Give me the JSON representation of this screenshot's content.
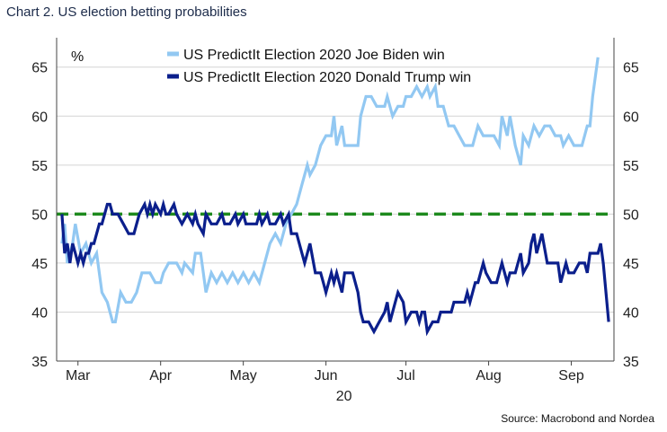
{
  "title": "Chart 2. US election betting probabilities",
  "source": "Source: Macrobond and Nordea",
  "colors": {
    "biden": "#92c8f2",
    "trump": "#0b1f8c",
    "reference": "#1e8a1e",
    "grid": "#d4d4d4",
    "axis": "#444444"
  },
  "chart_data": {
    "type": "line",
    "title": "Chart 2. US election betting probabilities",
    "unit_label": "%",
    "ylim": [
      35,
      68
    ],
    "yticks": [
      35,
      40,
      45,
      50,
      55,
      60,
      65
    ],
    "xlim": [
      "2020-02-28",
      "2020-09-24"
    ],
    "x_ticks": [
      {
        "label": "Mar",
        "date": "2020-03-07"
      },
      {
        "label": "Apr",
        "date": "2020-04-07"
      },
      {
        "label": "May",
        "date": "2020-05-08"
      },
      {
        "label": "Jun",
        "date": "2020-06-08"
      },
      {
        "label": "Jul",
        "date": "2020-07-08"
      },
      {
        "label": "Aug",
        "date": "2020-08-08"
      },
      {
        "label": "Sep",
        "date": "2020-09-08"
      }
    ],
    "x_sublabel": "20",
    "grid": "horizontal",
    "legend_position": "top",
    "reference_line": {
      "y": 50,
      "style": "dashed"
    },
    "series": [
      {
        "name": "US PredictIt Election 2020 Joe Biden win",
        "color": "#92c8f2",
        "points": [
          [
            "2020-03-01",
            47
          ],
          [
            "2020-03-02",
            49
          ],
          [
            "2020-03-03",
            45
          ],
          [
            "2020-03-05",
            47
          ],
          [
            "2020-03-06",
            49
          ],
          [
            "2020-03-08",
            46
          ],
          [
            "2020-03-10",
            47
          ],
          [
            "2020-03-12",
            45
          ],
          [
            "2020-03-14",
            46
          ],
          [
            "2020-03-16",
            42
          ],
          [
            "2020-03-18",
            41
          ],
          [
            "2020-03-20",
            39
          ],
          [
            "2020-03-21",
            39
          ],
          [
            "2020-03-23",
            42
          ],
          [
            "2020-03-25",
            41
          ],
          [
            "2020-03-27",
            41
          ],
          [
            "2020-03-29",
            42
          ],
          [
            "2020-03-31",
            44
          ],
          [
            "2020-04-03",
            44
          ],
          [
            "2020-04-05",
            43
          ],
          [
            "2020-04-07",
            43
          ],
          [
            "2020-04-08",
            44
          ],
          [
            "2020-04-10",
            45
          ],
          [
            "2020-04-13",
            45
          ],
          [
            "2020-04-15",
            44
          ],
          [
            "2020-04-16",
            45
          ],
          [
            "2020-04-19",
            44
          ],
          [
            "2020-04-20",
            46
          ],
          [
            "2020-04-22",
            46
          ],
          [
            "2020-04-23",
            44
          ],
          [
            "2020-04-24",
            42
          ],
          [
            "2020-04-26",
            44
          ],
          [
            "2020-04-28",
            43
          ],
          [
            "2020-04-30",
            44
          ],
          [
            "2020-05-02",
            43
          ],
          [
            "2020-05-04",
            44
          ],
          [
            "2020-05-06",
            43
          ],
          [
            "2020-05-08",
            44
          ],
          [
            "2020-05-10",
            43
          ],
          [
            "2020-05-12",
            44
          ],
          [
            "2020-05-14",
            43
          ],
          [
            "2020-05-16",
            45
          ],
          [
            "2020-05-18",
            47
          ],
          [
            "2020-05-20",
            48
          ],
          [
            "2020-05-22",
            47
          ],
          [
            "2020-05-24",
            49
          ],
          [
            "2020-05-26",
            50
          ],
          [
            "2020-05-28",
            51
          ],
          [
            "2020-05-30",
            53
          ],
          [
            "2020-06-01",
            55
          ],
          [
            "2020-06-02",
            54
          ],
          [
            "2020-06-04",
            55
          ],
          [
            "2020-06-06",
            57
          ],
          [
            "2020-06-08",
            58
          ],
          [
            "2020-06-10",
            58
          ],
          [
            "2020-06-11",
            60
          ],
          [
            "2020-06-12",
            57
          ],
          [
            "2020-06-14",
            59
          ],
          [
            "2020-06-15",
            57
          ],
          [
            "2020-06-17",
            57
          ],
          [
            "2020-06-20",
            57
          ],
          [
            "2020-06-21",
            60
          ],
          [
            "2020-06-23",
            62
          ],
          [
            "2020-06-25",
            62
          ],
          [
            "2020-06-27",
            61
          ],
          [
            "2020-06-30",
            61
          ],
          [
            "2020-07-01",
            62
          ],
          [
            "2020-07-03",
            60
          ],
          [
            "2020-07-05",
            61
          ],
          [
            "2020-07-07",
            61
          ],
          [
            "2020-07-08",
            62
          ],
          [
            "2020-07-10",
            62
          ],
          [
            "2020-07-12",
            63
          ],
          [
            "2020-07-14",
            62
          ],
          [
            "2020-07-16",
            63
          ],
          [
            "2020-07-17",
            62
          ],
          [
            "2020-07-19",
            63
          ],
          [
            "2020-07-20",
            61
          ],
          [
            "2020-07-22",
            61
          ],
          [
            "2020-07-24",
            59
          ],
          [
            "2020-07-26",
            59
          ],
          [
            "2020-07-28",
            58
          ],
          [
            "2020-07-30",
            57
          ],
          [
            "2020-08-02",
            57
          ],
          [
            "2020-08-04",
            59
          ],
          [
            "2020-08-06",
            58
          ],
          [
            "2020-08-08",
            58
          ],
          [
            "2020-08-10",
            58
          ],
          [
            "2020-08-12",
            57
          ],
          [
            "2020-08-13",
            60
          ],
          [
            "2020-08-15",
            58
          ],
          [
            "2020-08-16",
            60
          ],
          [
            "2020-08-18",
            57
          ],
          [
            "2020-08-20",
            55
          ],
          [
            "2020-08-21",
            58
          ],
          [
            "2020-08-23",
            57
          ],
          [
            "2020-08-25",
            59
          ],
          [
            "2020-08-27",
            58
          ],
          [
            "2020-08-29",
            59
          ],
          [
            "2020-08-31",
            59
          ],
          [
            "2020-09-02",
            58
          ],
          [
            "2020-09-04",
            58
          ],
          [
            "2020-09-05",
            57
          ],
          [
            "2020-09-07",
            58
          ],
          [
            "2020-09-09",
            57
          ],
          [
            "2020-09-12",
            57
          ],
          [
            "2020-09-14",
            59
          ],
          [
            "2020-09-15",
            59
          ],
          [
            "2020-09-16",
            62
          ],
          [
            "2020-09-18",
            66
          ]
        ]
      },
      {
        "name": "US PredictIt Election 2020 Donald Trump win",
        "color": "#0b1f8c",
        "points": [
          [
            "2020-03-01",
            50
          ],
          [
            "2020-03-02",
            46
          ],
          [
            "2020-03-03",
            47
          ],
          [
            "2020-03-04",
            45
          ],
          [
            "2020-03-05",
            47
          ],
          [
            "2020-03-06",
            46
          ],
          [
            "2020-03-07",
            45
          ],
          [
            "2020-03-08",
            46
          ],
          [
            "2020-03-09",
            45
          ],
          [
            "2020-03-10",
            46
          ],
          [
            "2020-03-11",
            46
          ],
          [
            "2020-03-12",
            47
          ],
          [
            "2020-03-13",
            47
          ],
          [
            "2020-03-14",
            48
          ],
          [
            "2020-03-15",
            49
          ],
          [
            "2020-03-16",
            49
          ],
          [
            "2020-03-17",
            50
          ],
          [
            "2020-03-18",
            51
          ],
          [
            "2020-03-19",
            51
          ],
          [
            "2020-03-20",
            50
          ],
          [
            "2020-03-22",
            50
          ],
          [
            "2020-03-24",
            49
          ],
          [
            "2020-03-26",
            48
          ],
          [
            "2020-03-28",
            48
          ],
          [
            "2020-03-30",
            50
          ],
          [
            "2020-04-01",
            51
          ],
          [
            "2020-04-02",
            50
          ],
          [
            "2020-04-03",
            51
          ],
          [
            "2020-04-04",
            50
          ],
          [
            "2020-04-05",
            51
          ],
          [
            "2020-04-07",
            50
          ],
          [
            "2020-04-08",
            51
          ],
          [
            "2020-04-09",
            50
          ],
          [
            "2020-04-10",
            50
          ],
          [
            "2020-04-12",
            51
          ],
          [
            "2020-04-13",
            50
          ],
          [
            "2020-04-15",
            49
          ],
          [
            "2020-04-17",
            50
          ],
          [
            "2020-04-19",
            49
          ],
          [
            "2020-04-20",
            50
          ],
          [
            "2020-04-21",
            49
          ],
          [
            "2020-04-23",
            48
          ],
          [
            "2020-04-24",
            50
          ],
          [
            "2020-04-26",
            49
          ],
          [
            "2020-04-28",
            49
          ],
          [
            "2020-04-30",
            50
          ],
          [
            "2020-05-01",
            49
          ],
          [
            "2020-05-03",
            49
          ],
          [
            "2020-05-05",
            50
          ],
          [
            "2020-05-06",
            49
          ],
          [
            "2020-05-08",
            50
          ],
          [
            "2020-05-09",
            49
          ],
          [
            "2020-05-11",
            49
          ],
          [
            "2020-05-13",
            49
          ],
          [
            "2020-05-14",
            50
          ],
          [
            "2020-05-15",
            49
          ],
          [
            "2020-05-17",
            50
          ],
          [
            "2020-05-18",
            49
          ],
          [
            "2020-05-20",
            49
          ],
          [
            "2020-05-22",
            50
          ],
          [
            "2020-05-23",
            49
          ],
          [
            "2020-05-25",
            50
          ],
          [
            "2020-05-26",
            48
          ],
          [
            "2020-05-28",
            48
          ],
          [
            "2020-05-30",
            46
          ],
          [
            "2020-05-31",
            45
          ],
          [
            "2020-06-01",
            46
          ],
          [
            "2020-06-02",
            47
          ],
          [
            "2020-06-04",
            44
          ],
          [
            "2020-06-06",
            44
          ],
          [
            "2020-06-07",
            43
          ],
          [
            "2020-06-08",
            42
          ],
          [
            "2020-06-10",
            44
          ],
          [
            "2020-06-11",
            43
          ],
          [
            "2020-06-12",
            44
          ],
          [
            "2020-06-14",
            42
          ],
          [
            "2020-06-15",
            44
          ],
          [
            "2020-06-17",
            44
          ],
          [
            "2020-06-18",
            44
          ],
          [
            "2020-06-20",
            42
          ],
          [
            "2020-06-21",
            40
          ],
          [
            "2020-06-22",
            39
          ],
          [
            "2020-06-24",
            39
          ],
          [
            "2020-06-26",
            38
          ],
          [
            "2020-06-28",
            39
          ],
          [
            "2020-06-30",
            40
          ],
          [
            "2020-07-01",
            41
          ],
          [
            "2020-07-02",
            39
          ],
          [
            "2020-07-04",
            41
          ],
          [
            "2020-07-05",
            42
          ],
          [
            "2020-07-07",
            41
          ],
          [
            "2020-07-08",
            39
          ],
          [
            "2020-07-10",
            40
          ],
          [
            "2020-07-12",
            40
          ],
          [
            "2020-07-13",
            39
          ],
          [
            "2020-07-14",
            40
          ],
          [
            "2020-07-15",
            40
          ],
          [
            "2020-07-16",
            38
          ],
          [
            "2020-07-18",
            39
          ],
          [
            "2020-07-20",
            39
          ],
          [
            "2020-07-21",
            40
          ],
          [
            "2020-07-23",
            40
          ],
          [
            "2020-07-25",
            40
          ],
          [
            "2020-07-26",
            41
          ],
          [
            "2020-07-28",
            41
          ],
          [
            "2020-07-30",
            41
          ],
          [
            "2020-07-31",
            42
          ],
          [
            "2020-08-01",
            41
          ],
          [
            "2020-08-03",
            43
          ],
          [
            "2020-08-04",
            43
          ],
          [
            "2020-08-06",
            45
          ],
          [
            "2020-08-07",
            44
          ],
          [
            "2020-08-09",
            43
          ],
          [
            "2020-08-11",
            43
          ],
          [
            "2020-08-13",
            45
          ],
          [
            "2020-08-15",
            43
          ],
          [
            "2020-08-16",
            44
          ],
          [
            "2020-08-18",
            44
          ],
          [
            "2020-08-20",
            46
          ],
          [
            "2020-08-21",
            44
          ],
          [
            "2020-08-23",
            45
          ],
          [
            "2020-08-24",
            47
          ],
          [
            "2020-08-25",
            48
          ],
          [
            "2020-08-26",
            46
          ],
          [
            "2020-08-27",
            47
          ],
          [
            "2020-08-28",
            48
          ],
          [
            "2020-08-30",
            45
          ],
          [
            "2020-09-01",
            45
          ],
          [
            "2020-09-03",
            45
          ],
          [
            "2020-09-04",
            43
          ],
          [
            "2020-09-06",
            45
          ],
          [
            "2020-09-07",
            44
          ],
          [
            "2020-09-09",
            44
          ],
          [
            "2020-09-11",
            45
          ],
          [
            "2020-09-13",
            45
          ],
          [
            "2020-09-14",
            44
          ],
          [
            "2020-09-15",
            46
          ],
          [
            "2020-09-17",
            46
          ],
          [
            "2020-09-18",
            46
          ],
          [
            "2020-09-19",
            47
          ],
          [
            "2020-09-20",
            45
          ],
          [
            "2020-09-21",
            42
          ],
          [
            "2020-09-22",
            39
          ]
        ]
      }
    ]
  }
}
